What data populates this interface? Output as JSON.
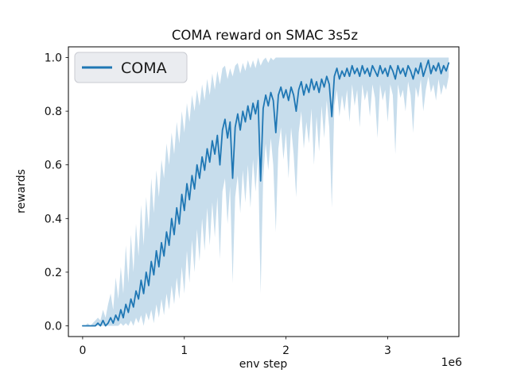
{
  "window": {
    "title": "COMA reward on SMAC 3s5z"
  },
  "chart_data": {
    "type": "line",
    "title": "COMA reward on SMAC 3s5z",
    "xlabel": "env step",
    "ylabel": "rewards",
    "x_offset_label": "1e6",
    "grid": false,
    "legend": {
      "position": "upper left",
      "entries": [
        {
          "label": "COMA",
          "color": "#1f77b4"
        }
      ]
    },
    "line_color": "#1f77b4",
    "band_fill": "#1f77b4",
    "band_alpha": 0.25,
    "xlim": [
      -140000,
      3700000
    ],
    "ylim": [
      -0.04,
      1.04
    ],
    "xticks": {
      "values": [
        0,
        1000000,
        2000000,
        3000000
      ],
      "labels": [
        "0",
        "1",
        "2",
        "3"
      ]
    },
    "yticks": {
      "values": [
        0.0,
        0.2,
        0.4,
        0.6,
        0.8,
        1.0
      ],
      "labels": [
        "0.0",
        "0.2",
        "0.4",
        "0.6",
        "0.8",
        "1.0"
      ]
    },
    "series": [
      {
        "name": "COMA",
        "x_unit": 1000000,
        "x_start": 0,
        "x_step": 0.025,
        "mean": [
          0.0,
          0.0,
          0.0,
          0.0,
          0.0,
          0.0,
          0.01,
          0.0,
          0.02,
          0.0,
          0.01,
          0.03,
          0.01,
          0.04,
          0.02,
          0.06,
          0.03,
          0.08,
          0.05,
          0.1,
          0.07,
          0.13,
          0.1,
          0.17,
          0.12,
          0.2,
          0.15,
          0.24,
          0.19,
          0.28,
          0.22,
          0.31,
          0.26,
          0.35,
          0.3,
          0.4,
          0.34,
          0.44,
          0.38,
          0.49,
          0.43,
          0.53,
          0.47,
          0.56,
          0.51,
          0.6,
          0.55,
          0.63,
          0.58,
          0.66,
          0.61,
          0.69,
          0.64,
          0.71,
          0.6,
          0.73,
          0.77,
          0.7,
          0.76,
          0.55,
          0.74,
          0.79,
          0.73,
          0.8,
          0.76,
          0.82,
          0.77,
          0.83,
          0.79,
          0.84,
          0.54,
          0.81,
          0.86,
          0.82,
          0.87,
          0.84,
          0.72,
          0.86,
          0.89,
          0.85,
          0.88,
          0.84,
          0.89,
          0.86,
          0.8,
          0.88,
          0.91,
          0.86,
          0.9,
          0.87,
          0.92,
          0.88,
          0.91,
          0.87,
          0.92,
          0.89,
          0.93,
          0.9,
          0.78,
          0.93,
          0.96,
          0.92,
          0.95,
          0.93,
          0.96,
          0.93,
          0.97,
          0.94,
          0.96,
          0.93,
          0.97,
          0.94,
          0.96,
          0.93,
          0.97,
          0.95,
          0.93,
          0.97,
          0.94,
          0.96,
          0.93,
          0.97,
          0.95,
          0.92,
          0.97,
          0.94,
          0.96,
          0.93,
          0.97,
          0.95,
          0.92,
          0.96,
          0.94,
          0.98,
          0.93,
          0.96,
          0.99,
          0.94,
          0.97,
          0.95,
          0.98,
          0.94,
          0.97,
          0.95,
          0.98
        ],
        "band_low": [
          0.0,
          0.0,
          0.0,
          0.0,
          0.0,
          0.0,
          0.0,
          0.0,
          0.0,
          0.0,
          0.0,
          0.0,
          0.0,
          0.0,
          0.0,
          0.01,
          0.0,
          0.01,
          0.0,
          0.02,
          0.0,
          0.03,
          0.01,
          0.04,
          0.0,
          0.05,
          0.02,
          0.06,
          0.01,
          0.08,
          0.03,
          0.1,
          0.04,
          0.12,
          0.06,
          0.15,
          0.08,
          0.18,
          0.1,
          0.22,
          0.12,
          0.28,
          0.16,
          0.32,
          0.2,
          0.36,
          0.24,
          0.4,
          0.28,
          0.44,
          0.3,
          0.46,
          0.33,
          0.48,
          0.25,
          0.5,
          0.55,
          0.38,
          0.52,
          0.16,
          0.48,
          0.56,
          0.42,
          0.58,
          0.46,
          0.6,
          0.44,
          0.62,
          0.5,
          0.64,
          0.12,
          0.55,
          0.68,
          0.58,
          0.7,
          0.6,
          0.35,
          0.66,
          0.74,
          0.62,
          0.72,
          0.55,
          0.74,
          0.64,
          0.48,
          0.72,
          0.8,
          0.66,
          0.76,
          0.68,
          0.81,
          0.6,
          0.78,
          0.65,
          0.82,
          0.7,
          0.84,
          0.74,
          0.44,
          0.82,
          0.88,
          0.78,
          0.86,
          0.8,
          0.88,
          0.76,
          0.9,
          0.82,
          0.88,
          0.74,
          0.9,
          0.84,
          0.88,
          0.78,
          0.9,
          0.85,
          0.7,
          0.9,
          0.84,
          0.88,
          0.76,
          0.9,
          0.86,
          0.64,
          0.9,
          0.85,
          0.88,
          0.8,
          0.91,
          0.86,
          0.72,
          0.89,
          0.85,
          0.92,
          0.8,
          0.88,
          0.93,
          0.87,
          0.9,
          0.84,
          0.92,
          0.86,
          0.9,
          0.88,
          0.93
        ],
        "band_high": [
          0.0,
          0.0,
          0.01,
          0.0,
          0.01,
          0.02,
          0.03,
          0.02,
          0.06,
          0.03,
          0.08,
          0.12,
          0.06,
          0.18,
          0.1,
          0.22,
          0.12,
          0.3,
          0.16,
          0.34,
          0.2,
          0.38,
          0.26,
          0.45,
          0.3,
          0.48,
          0.36,
          0.55,
          0.42,
          0.58,
          0.48,
          0.62,
          0.55,
          0.68,
          0.6,
          0.72,
          0.64,
          0.76,
          0.68,
          0.8,
          0.72,
          0.83,
          0.76,
          0.86,
          0.8,
          0.88,
          0.82,
          0.9,
          0.84,
          0.92,
          0.86,
          0.94,
          0.88,
          0.95,
          0.9,
          0.96,
          0.97,
          0.92,
          0.96,
          0.93,
          0.97,
          0.98,
          0.94,
          0.98,
          0.95,
          0.99,
          0.96,
          0.99,
          0.96,
          1.0,
          0.97,
          0.99,
          1.0,
          0.98,
          1.0,
          0.99,
          1.0,
          1.0,
          1.0,
          1.0,
          1.0,
          1.0,
          1.0,
          1.0,
          1.0,
          1.0,
          1.0,
          1.0,
          1.0,
          1.0,
          1.0,
          1.0,
          1.0,
          1.0,
          1.0,
          1.0,
          1.0,
          1.0,
          1.0,
          1.0,
          1.0,
          1.0,
          1.0,
          1.0,
          1.0,
          1.0,
          1.0,
          1.0,
          1.0,
          1.0,
          1.0,
          1.0,
          1.0,
          1.0,
          1.0,
          1.0,
          1.0,
          1.0,
          1.0,
          1.0,
          1.0,
          1.0,
          1.0,
          1.0,
          1.0,
          1.0,
          1.0,
          1.0,
          1.0,
          1.0,
          1.0,
          1.0,
          1.0,
          1.0,
          1.0,
          1.0,
          1.0,
          1.0,
          1.0,
          1.0,
          1.0,
          1.0,
          1.0,
          1.0,
          1.0
        ]
      }
    ]
  }
}
